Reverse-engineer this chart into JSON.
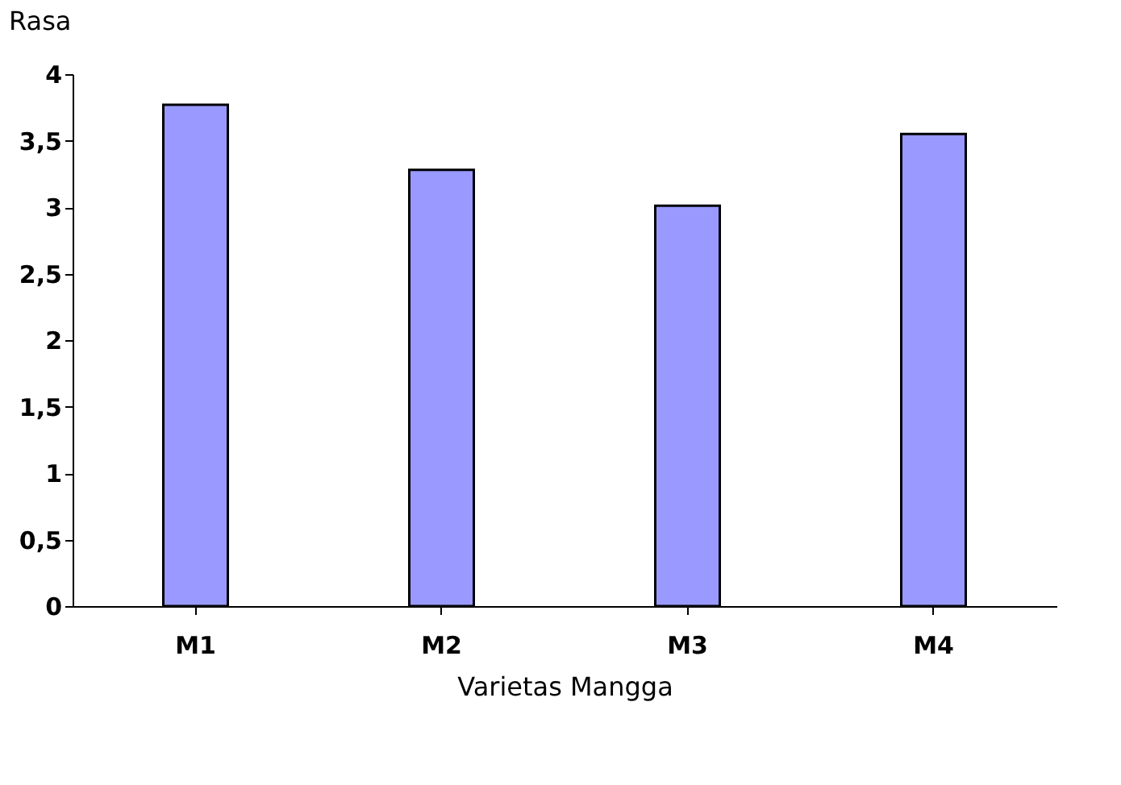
{
  "chart_data": {
    "type": "bar",
    "ylabel": "Rasa",
    "xlabel": "Varietas Mangga",
    "categories": [
      "M1",
      "M2",
      "M3",
      "M4"
    ],
    "values": [
      3.77,
      3.28,
      3.01,
      3.55
    ],
    "color": "#9999ff",
    "ylim": [
      0,
      4
    ],
    "yticks": [
      0,
      {
        "value": 0.5,
        "label": "0,5"
      },
      1,
      {
        "value": 1.5,
        "label": "1,5"
      },
      2,
      {
        "value": 2.5,
        "label": "2,5"
      },
      3,
      {
        "value": 3.5,
        "label": "3,5"
      },
      4
    ],
    "grid": false
  }
}
